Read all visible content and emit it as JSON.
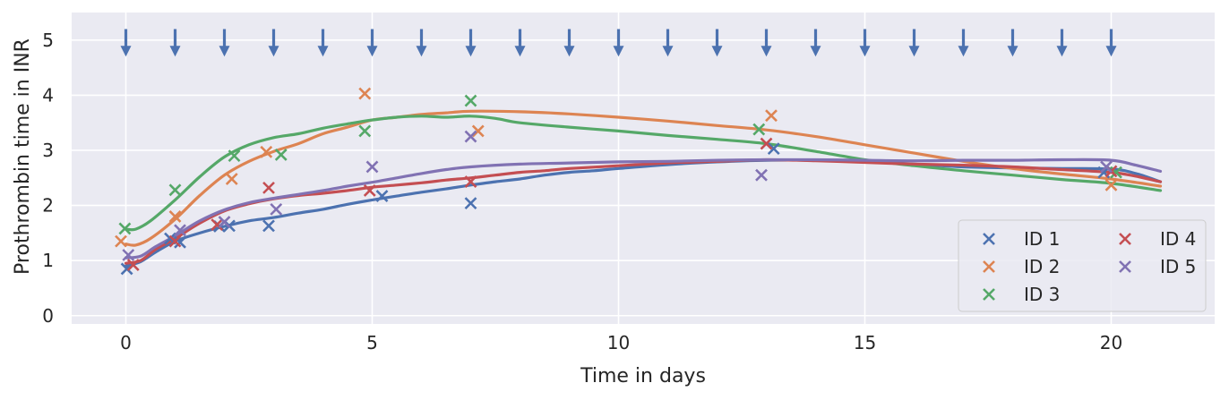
{
  "chart_data": {
    "type": "line",
    "title": "",
    "xlabel": "Time in days",
    "ylabel": "Prothrombin time in INR",
    "xlim": [
      -1.1,
      22.1
    ],
    "ylim": [
      -0.15,
      5.5
    ],
    "xticks": [
      0,
      5,
      10,
      15,
      20
    ],
    "yticks": [
      0,
      1,
      2,
      3,
      4,
      5
    ],
    "grid": true,
    "legend_position": "bottom-right",
    "legend_columns": 2,
    "dose_arrows": {
      "times": [
        0,
        1,
        2,
        3,
        4,
        5,
        6,
        7,
        8,
        9,
        10,
        11,
        12,
        13,
        14,
        15,
        16,
        17,
        18,
        19,
        20
      ],
      "y_top": 5.2,
      "y_bottom": 4.7,
      "color": "#4c72b0"
    },
    "series": [
      {
        "name": "ID 1",
        "color": "#4c72b0",
        "observations": [
          [
            0.02,
            0.85
          ],
          [
            0.9,
            1.4
          ],
          [
            1.1,
            1.33
          ],
          [
            1.9,
            1.62
          ],
          [
            2.1,
            1.63
          ],
          [
            2.9,
            1.63
          ],
          [
            5.2,
            2.17
          ],
          [
            7.0,
            2.04
          ],
          [
            13.15,
            3.03
          ],
          [
            19.85,
            2.6
          ]
        ],
        "curve": [
          [
            0,
            0.9
          ],
          [
            0.3,
            0.98
          ],
          [
            0.6,
            1.15
          ],
          [
            1,
            1.35
          ],
          [
            1.5,
            1.5
          ],
          [
            2,
            1.62
          ],
          [
            2.5,
            1.72
          ],
          [
            3,
            1.78
          ],
          [
            3.5,
            1.86
          ],
          [
            4,
            1.93
          ],
          [
            4.5,
            2.02
          ],
          [
            5,
            2.1
          ],
          [
            5.5,
            2.17
          ],
          [
            6,
            2.24
          ],
          [
            6.5,
            2.3
          ],
          [
            7,
            2.37
          ],
          [
            7.5,
            2.43
          ],
          [
            8,
            2.48
          ],
          [
            8.5,
            2.55
          ],
          [
            9,
            2.6
          ],
          [
            9.5,
            2.63
          ],
          [
            10,
            2.67
          ],
          [
            11,
            2.74
          ],
          [
            12,
            2.79
          ],
          [
            13,
            2.82
          ],
          [
            14,
            2.82
          ],
          [
            15,
            2.8
          ],
          [
            16,
            2.75
          ],
          [
            17,
            2.7
          ],
          [
            18,
            2.68
          ],
          [
            19,
            2.67
          ],
          [
            20,
            2.66
          ],
          [
            20.5,
            2.58
          ],
          [
            21,
            2.43
          ]
        ]
      },
      {
        "name": "ID 2",
        "color": "#dd8452",
        "observations": [
          [
            -0.1,
            1.35
          ],
          [
            1.0,
            1.8
          ],
          [
            2.15,
            2.48
          ],
          [
            2.85,
            2.97
          ],
          [
            4.85,
            4.03
          ],
          [
            7.15,
            3.35
          ],
          [
            13.1,
            3.63
          ],
          [
            20.0,
            2.37
          ]
        ],
        "curve": [
          [
            0,
            1.3
          ],
          [
            0.2,
            1.28
          ],
          [
            0.5,
            1.4
          ],
          [
            1,
            1.75
          ],
          [
            1.5,
            2.18
          ],
          [
            2,
            2.55
          ],
          [
            2.5,
            2.8
          ],
          [
            3,
            2.98
          ],
          [
            3.5,
            3.12
          ],
          [
            4,
            3.3
          ],
          [
            4.5,
            3.42
          ],
          [
            5,
            3.55
          ],
          [
            5.5,
            3.6
          ],
          [
            6,
            3.65
          ],
          [
            6.5,
            3.68
          ],
          [
            7,
            3.71
          ],
          [
            8,
            3.7
          ],
          [
            9,
            3.66
          ],
          [
            10,
            3.6
          ],
          [
            11,
            3.53
          ],
          [
            12,
            3.45
          ],
          [
            13,
            3.37
          ],
          [
            14,
            3.25
          ],
          [
            15,
            3.1
          ],
          [
            16,
            2.95
          ],
          [
            17,
            2.8
          ],
          [
            18,
            2.67
          ],
          [
            19,
            2.57
          ],
          [
            20,
            2.48
          ],
          [
            21,
            2.35
          ]
        ]
      },
      {
        "name": "ID 3",
        "color": "#55a868",
        "observations": [
          [
            -0.02,
            1.58
          ],
          [
            1.0,
            2.28
          ],
          [
            2.2,
            2.9
          ],
          [
            3.15,
            2.92
          ],
          [
            4.85,
            3.35
          ],
          [
            7.0,
            3.9
          ],
          [
            12.85,
            3.38
          ],
          [
            20.1,
            2.6
          ]
        ],
        "curve": [
          [
            0,
            1.57
          ],
          [
            0.2,
            1.57
          ],
          [
            0.5,
            1.72
          ],
          [
            1,
            2.1
          ],
          [
            1.5,
            2.52
          ],
          [
            2,
            2.88
          ],
          [
            2.5,
            3.1
          ],
          [
            3,
            3.23
          ],
          [
            3.5,
            3.3
          ],
          [
            4,
            3.4
          ],
          [
            4.5,
            3.48
          ],
          [
            5,
            3.55
          ],
          [
            5.5,
            3.6
          ],
          [
            6,
            3.62
          ],
          [
            6.5,
            3.6
          ],
          [
            7,
            3.62
          ],
          [
            7.5,
            3.58
          ],
          [
            8,
            3.5
          ],
          [
            9,
            3.42
          ],
          [
            10,
            3.35
          ],
          [
            11,
            3.27
          ],
          [
            12,
            3.2
          ],
          [
            13,
            3.12
          ],
          [
            14,
            2.98
          ],
          [
            15,
            2.83
          ],
          [
            16,
            2.72
          ],
          [
            17,
            2.63
          ],
          [
            18,
            2.55
          ],
          [
            19,
            2.47
          ],
          [
            20,
            2.4
          ],
          [
            21,
            2.27
          ]
        ]
      },
      {
        "name": "ID 4",
        "color": "#c44e52",
        "observations": [
          [
            0.15,
            0.92
          ],
          [
            1.0,
            1.35
          ],
          [
            1.85,
            1.65
          ],
          [
            2.9,
            2.32
          ],
          [
            4.95,
            2.27
          ],
          [
            7.0,
            2.43
          ],
          [
            13.0,
            3.12
          ],
          [
            20.0,
            2.62
          ]
        ],
        "curve": [
          [
            0,
            0.95
          ],
          [
            0.3,
            1.0
          ],
          [
            0.6,
            1.2
          ],
          [
            1,
            1.4
          ],
          [
            1.5,
            1.68
          ],
          [
            2,
            1.9
          ],
          [
            2.5,
            2.03
          ],
          [
            3,
            2.12
          ],
          [
            3.5,
            2.18
          ],
          [
            4,
            2.22
          ],
          [
            4.5,
            2.27
          ],
          [
            5,
            2.33
          ],
          [
            5.5,
            2.37
          ],
          [
            6,
            2.41
          ],
          [
            6.5,
            2.46
          ],
          [
            7,
            2.5
          ],
          [
            7.5,
            2.55
          ],
          [
            8,
            2.6
          ],
          [
            8.5,
            2.63
          ],
          [
            9,
            2.67
          ],
          [
            10,
            2.72
          ],
          [
            11,
            2.77
          ],
          [
            12,
            2.8
          ],
          [
            13,
            2.83
          ],
          [
            14,
            2.81
          ],
          [
            15,
            2.78
          ],
          [
            16,
            2.75
          ],
          [
            17,
            2.73
          ],
          [
            18,
            2.7
          ],
          [
            19,
            2.65
          ],
          [
            20,
            2.6
          ],
          [
            20.5,
            2.53
          ],
          [
            21,
            2.43
          ]
        ]
      },
      {
        "name": "ID 5",
        "color": "#8172b3",
        "observations": [
          [
            0.05,
            1.1
          ],
          [
            1.1,
            1.55
          ],
          [
            2.0,
            1.7
          ],
          [
            3.05,
            1.93
          ],
          [
            5.0,
            2.7
          ],
          [
            7.0,
            3.25
          ],
          [
            12.9,
            2.55
          ],
          [
            19.9,
            2.7
          ]
        ],
        "curve": [
          [
            0,
            1.05
          ],
          [
            0.3,
            1.08
          ],
          [
            0.6,
            1.25
          ],
          [
            1,
            1.45
          ],
          [
            1.5,
            1.72
          ],
          [
            2,
            1.92
          ],
          [
            2.5,
            2.05
          ],
          [
            3,
            2.13
          ],
          [
            3.5,
            2.2
          ],
          [
            4,
            2.27
          ],
          [
            4.5,
            2.35
          ],
          [
            5,
            2.42
          ],
          [
            5.5,
            2.5
          ],
          [
            6,
            2.58
          ],
          [
            6.5,
            2.65
          ],
          [
            7,
            2.7
          ],
          [
            8,
            2.75
          ],
          [
            9,
            2.77
          ],
          [
            10,
            2.79
          ],
          [
            11,
            2.8
          ],
          [
            12,
            2.82
          ],
          [
            13,
            2.83
          ],
          [
            14,
            2.83
          ],
          [
            15,
            2.82
          ],
          [
            16,
            2.81
          ],
          [
            17,
            2.82
          ],
          [
            18,
            2.82
          ],
          [
            19,
            2.83
          ],
          [
            20,
            2.82
          ],
          [
            20.5,
            2.73
          ],
          [
            21,
            2.62
          ]
        ]
      }
    ]
  }
}
